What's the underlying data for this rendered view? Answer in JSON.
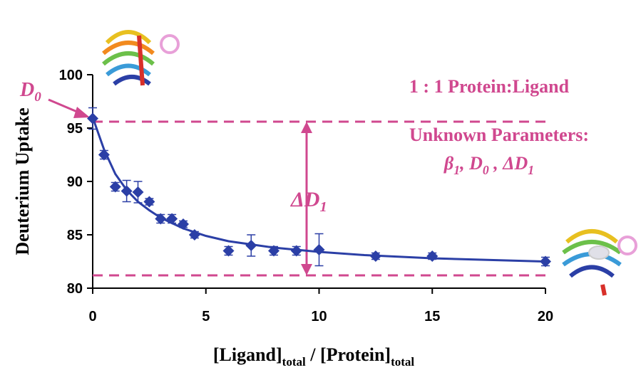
{
  "chart_data": {
    "type": "scatter",
    "y_label": "Deuterium Uptake",
    "x_label": [
      "[Ligand]",
      "total",
      " / [Protein]",
      "total"
    ],
    "x": [
      0,
      0.5,
      1,
      1.5,
      2,
      2.5,
      3,
      3.5,
      4,
      4.5,
      6,
      7,
      8,
      9,
      10,
      12.5,
      15,
      20
    ],
    "values": [
      95.9,
      92.5,
      89.5,
      89.1,
      89.0,
      88.1,
      86.5,
      86.5,
      86.0,
      85.0,
      83.5,
      84.0,
      83.5,
      83.5,
      83.6,
      83.0,
      83.0,
      82.5
    ],
    "errors": [
      1.0,
      0.4,
      0.4,
      1.0,
      1.0,
      0.3,
      0.4,
      0.4,
      0.3,
      0.3,
      0.4,
      1.0,
      0.4,
      0.4,
      1.5,
      0.3,
      0.3,
      0.4
    ],
    "color": "#2b3fa6",
    "fit": {
      "x": [
        0,
        0.5,
        1,
        1.5,
        2,
        2.5,
        3,
        4,
        5,
        6,
        7,
        8,
        10,
        12,
        15,
        20
      ],
      "values": [
        96,
        93,
        90.7,
        89.2,
        88.1,
        87.3,
        86.6,
        85.6,
        84.9,
        84.4,
        84.1,
        83.8,
        83.4,
        83.1,
        82.8,
        82.5
      ]
    },
    "hlines": [
      95.6,
      81.2
    ],
    "annotation_color": "#d0488f",
    "annotations": {
      "d0": [
        "D",
        "0"
      ],
      "delta_d1": [
        "ΔD",
        "1"
      ],
      "ratio": "1 : 1  Protein:Ligand",
      "unknown": "Unknown Parameters:",
      "params": [
        "β",
        "1",
        ", D",
        "0",
        " , ΔD",
        "1"
      ]
    },
    "xlim": [
      0,
      20
    ],
    "xticks": [
      0,
      5,
      10,
      15,
      20
    ],
    "ylim": [
      80,
      100
    ],
    "yticks": [
      80,
      85,
      90,
      95,
      100
    ]
  }
}
